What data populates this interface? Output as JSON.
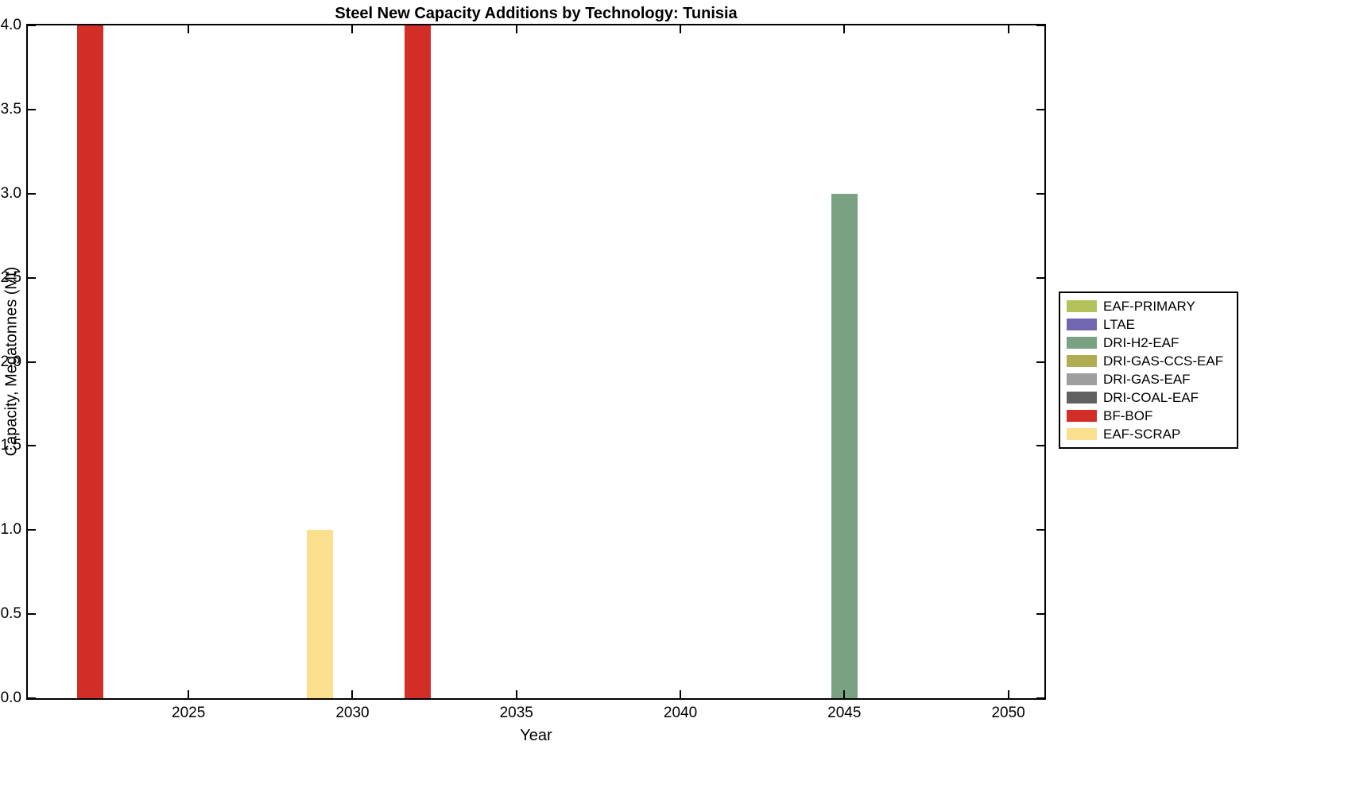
{
  "figure": {
    "title": "Steel New Capacity Additions by Technology: Tunisia",
    "xlabel": "Year",
    "ylabel": "Capacity, Megatonnes (Mt)"
  },
  "chart_data": {
    "type": "bar",
    "title": "Steel New Capacity Additions by Technology: Tunisia",
    "xlabel": "Year",
    "ylabel": "Capacity, Megatonnes (Mt)",
    "xlim": [
      2020.1,
      2051.1
    ],
    "ylim": [
      0,
      4
    ],
    "xticks": [
      2025,
      2030,
      2035,
      2040,
      2045,
      2050
    ],
    "ytick_labels": [
      "0.0",
      "0.5",
      "1.0",
      "1.5",
      "2.0",
      "2.5",
      "3.0",
      "3.5",
      "4.0"
    ],
    "bar_width_years": 0.8,
    "grid": false,
    "bars": [
      {
        "year": 2022,
        "value": 4.0,
        "technology": "BF-BOF"
      },
      {
        "year": 2029,
        "value": 1.0,
        "technology": "EAF-SCRAP"
      },
      {
        "year": 2032,
        "value": 4.0,
        "technology": "BF-BOF"
      },
      {
        "year": 2045,
        "value": 3.0,
        "technology": "DRI-H2-EAF"
      }
    ],
    "legend": {
      "position": "right-outside",
      "entries": [
        {
          "label": "EAF-PRIMARY",
          "color": "#b4c25b"
        },
        {
          "label": "LTAE",
          "color": "#7066b2"
        },
        {
          "label": "DRI-H2-EAF",
          "color": "#7ba183"
        },
        {
          "label": "DRI-GAS-CCS-EAF",
          "color": "#b0ad52"
        },
        {
          "label": "DRI-GAS-EAF",
          "color": "#9e9e9e"
        },
        {
          "label": "DRI-COAL-EAF",
          "color": "#606060"
        },
        {
          "label": "BF-BOF",
          "color": "#d22d26"
        },
        {
          "label": "EAF-SCRAP",
          "color": "#fadf8e"
        }
      ]
    }
  }
}
